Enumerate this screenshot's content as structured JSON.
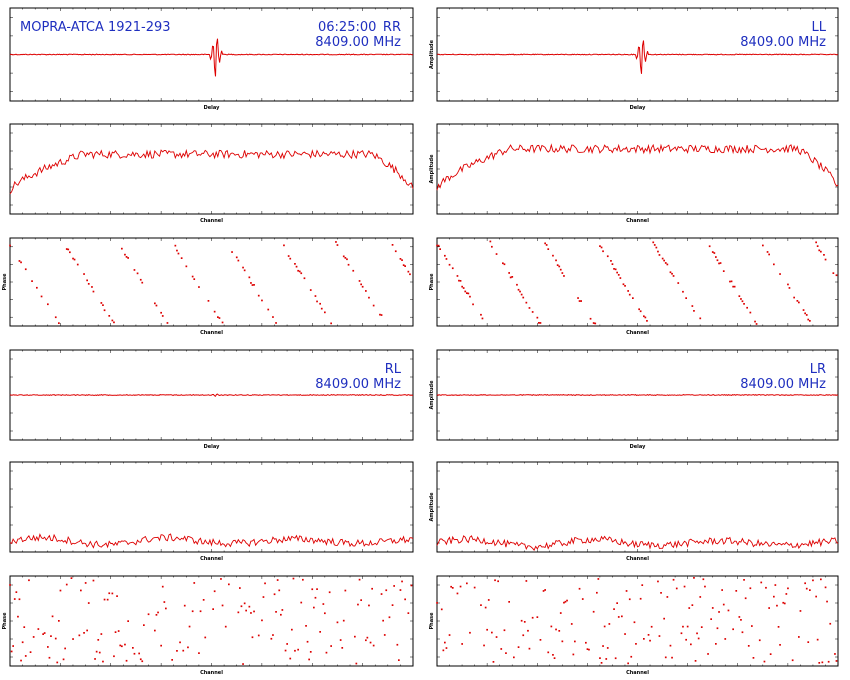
{
  "title": "MOPRA-ATCA 1921-293",
  "time": "06:25:00",
  "colors": {
    "trace": "#dd0000",
    "annotation": "#1f2fbf",
    "frame": "#000000"
  },
  "chart_data": [
    {
      "type": "line",
      "id": "rr-delay",
      "pol": "RR",
      "freq": "8409.00 MHz",
      "xlabel": "Delay",
      "ylabel": "",
      "xlim": [
        -256,
        256
      ],
      "baseline": 0.5,
      "spike": {
        "x": 6,
        "amp": 0.85
      }
    },
    {
      "type": "line",
      "id": "ll-delay",
      "pol": "LL",
      "freq": "8409.00 MHz",
      "xlabel": "Delay",
      "ylabel": "Amplitude",
      "xlim": [
        -256,
        256
      ],
      "baseline": 0.5,
      "spike": {
        "x": 6,
        "amp": 0.75
      }
    },
    {
      "type": "line",
      "id": "rr-amp",
      "xlabel": "Channel",
      "ylabel": "",
      "xlim": [
        0,
        256
      ],
      "profile": "bandpass",
      "level": 0.62
    },
    {
      "type": "line",
      "id": "ll-amp",
      "xlabel": "Channel",
      "ylabel": "Amplitude",
      "xlim": [
        0,
        256
      ],
      "profile": "bandpass",
      "level": 0.68
    },
    {
      "type": "scatter",
      "id": "rr-phase",
      "xlabel": "Channel",
      "ylabel": "Phase",
      "xlim": [
        0,
        256
      ],
      "ylim": [
        -180,
        180
      ],
      "wraps": 7.4
    },
    {
      "type": "scatter",
      "id": "ll-phase",
      "xlabel": "Channel",
      "ylabel": "Phase",
      "xlim": [
        0,
        256
      ],
      "ylim": [
        -180,
        180
      ],
      "wraps": 7.4
    },
    {
      "type": "line",
      "id": "rl-delay",
      "pol": "RL",
      "freq": "8409.00 MHz",
      "xlabel": "Delay",
      "ylabel": "",
      "xlim": [
        -256,
        256
      ],
      "baseline": 0.5,
      "spike": {
        "x": 6,
        "amp": 0.05
      }
    },
    {
      "type": "line",
      "id": "lr-delay",
      "pol": "LR",
      "freq": "8409.00 MHz",
      "xlabel": "Delay",
      "ylabel": "Amplitude",
      "xlim": [
        -256,
        256
      ],
      "baseline": 0.5,
      "spike": {
        "x": 6,
        "amp": 0.0
      }
    },
    {
      "type": "line",
      "id": "rl-amp",
      "xlabel": "Channel",
      "ylabel": "",
      "xlim": [
        0,
        256
      ],
      "profile": "noise",
      "level": 0.12
    },
    {
      "type": "line",
      "id": "lr-amp",
      "xlabel": "Channel",
      "ylabel": "Amplitude",
      "xlim": [
        0,
        256
      ],
      "profile": "noise",
      "level": 0.1
    },
    {
      "type": "scatter",
      "id": "rl-phase",
      "xlabel": "Channel",
      "ylabel": "Phase",
      "xlim": [
        0,
        256
      ],
      "ylim": [
        -180,
        180
      ],
      "wraps": 0
    },
    {
      "type": "scatter",
      "id": "lr-phase",
      "xlabel": "Channel",
      "ylabel": "Phase",
      "xlim": [
        0,
        256
      ],
      "ylim": [
        -180,
        180
      ],
      "wraps": 0
    }
  ]
}
